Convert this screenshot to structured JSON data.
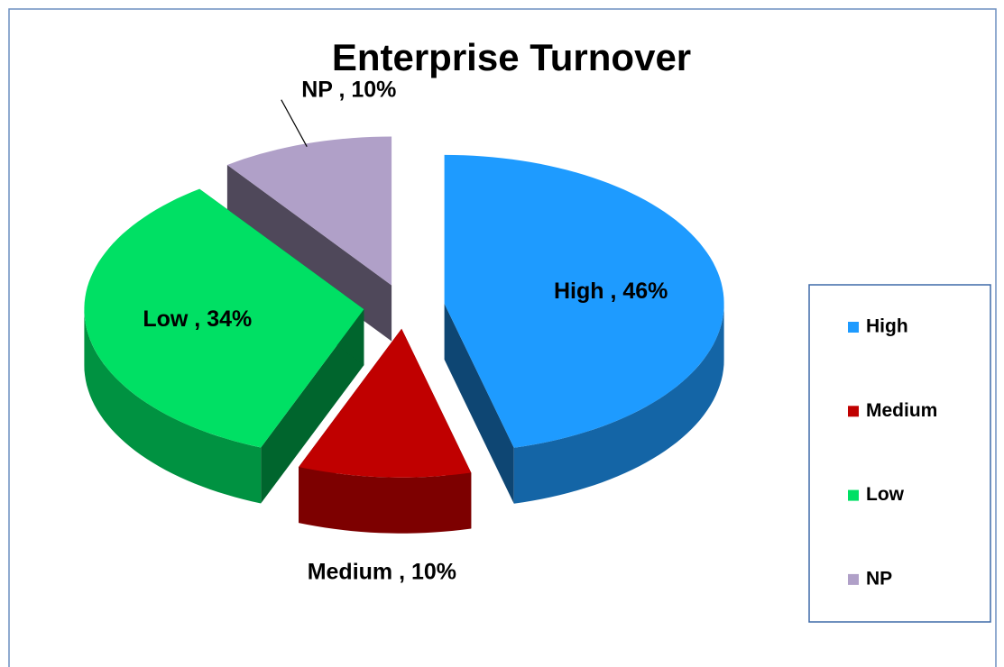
{
  "chart_data": {
    "type": "pie3d",
    "title": "Enterprise Turnover",
    "categories": [
      "High",
      "Medium",
      "Low",
      "NP"
    ],
    "values": [
      46,
      10,
      34,
      10
    ],
    "value_labels": [
      "High , 46%",
      "Medium , 10%",
      "Low , 34%",
      "NP , 10%"
    ],
    "colors": [
      "#1e9bff",
      "#c00000",
      "#00e064",
      "#b0a0c8"
    ],
    "legend": "right"
  }
}
